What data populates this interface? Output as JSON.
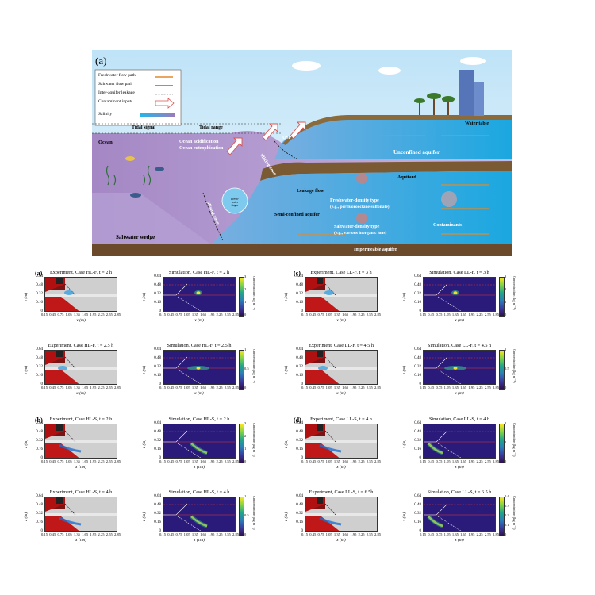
{
  "schematic": {
    "panel_label": "(a)",
    "legend": [
      {
        "label": "Freshwater flow path",
        "kind": "orange-arrow"
      },
      {
        "label": "Saltwater flow path",
        "kind": "purple-arrow"
      },
      {
        "label": "Inter-aquifer leakage",
        "kind": "dashed-arrow"
      },
      {
        "label": "Contaminant inputs",
        "kind": "hollow-arrow"
      },
      {
        "label": "Salinity",
        "kind": "gradient-bar"
      }
    ],
    "labels": {
      "water_table": "Water table",
      "tidal_signal": "Tidal signal",
      "tidal_range": "Tidal range",
      "usp": "USP",
      "ocean": "Ocean",
      "ocean_acidification": "Ocean acidification",
      "ocean_eutrophication": "Ocean eutrophication",
      "mixing_zone_upper": "Mixing zone",
      "unconfined_aquifer": "Unconfined aquifer",
      "aquitard": "Aquitard",
      "leakage_flow": "Leakage flow",
      "freshwater_finger": "Fresh-water finger",
      "freshwater_density_type": "Freshwater-density type",
      "freshwater_density_example": "(e.g., perfluorooctane sulfonate)",
      "semi_confined_aquifer": "Semi-confined aquifer",
      "mixing_zone_lower": "Mixing zone",
      "saltwater_density_type": "Saltwater-density type",
      "saltwater_density_example": "(e.g., various inorganic ions)",
      "contaminants": "Contaminants",
      "saltwater_wedge": "Saltwater wedge",
      "impermeable_aquifer": "Impermeable aquifer"
    }
  },
  "figure": {
    "group_labels": [
      "(a)",
      "(b)",
      "(c)",
      "(d)"
    ],
    "ytick_labels": [
      "0.64",
      "0.48",
      "0.32",
      "0.16",
      "0"
    ],
    "xtick_labels": [
      "0.15",
      "0.45",
      "0.75",
      "1.05",
      "1.35",
      "1.65",
      "1.95",
      "2.25",
      "2.55",
      "2.85"
    ],
    "ylabel": "z (m)",
    "cbar_label": "Concentration (kg m⁻³)",
    "rows": [
      {
        "titles": [
          "Experiment, Case HL-F, t = 2 h",
          "Simulation, Case HL-F, t = 2 h",
          "Experiment, Case LL-F, t = 3 h",
          "Simulation, Case LL-F, t = 3 h"
        ],
        "xlabel": [
          "x (m)",
          "x (m)",
          "x (m)",
          "x (m)"
        ],
        "cbar": [
          [
            "3",
            "2",
            "1",
            "0"
          ],
          [
            "3",
            "2",
            "1",
            "0"
          ]
        ]
      },
      {
        "titles": [
          "Experiment, Case HL-F, t = 2.5 h",
          "Simulation, Case HL-F, t = 2.5 h",
          "Experiment, Case LL-F, t = 4.5 h",
          "Simulation, Case LL-F, t = 4.5 h"
        ],
        "xlabel": [
          "x (m)",
          "x (m)",
          "x (m)",
          "x (m)"
        ],
        "cbar": [
          [
            "1",
            "0.5",
            "0"
          ],
          [
            "1",
            "0.5",
            "0"
          ]
        ]
      },
      {
        "titles": [
          "Experiment, Case HL-S, t = 2 h",
          "Simulation, Case HL-S, t = 2 h",
          "Experiment, Case LL-S, t = 4 h",
          "Simulation, Case LL-S, t = 4 h"
        ],
        "xlabel": [
          "x (cm)",
          "x (cm)",
          "x (m)",
          "x (m)"
        ],
        "cbar": [
          [
            "3",
            "2",
            "1",
            "0"
          ],
          [
            "2",
            "1",
            "0"
          ]
        ]
      },
      {
        "titles": [
          "Experiment, Case HL-S, t = 4 h",
          "Simulation, Case HL-S, t = 4 h",
          "Experiment, Case LL-S, t = 6.5h",
          "Simulation, Case LL-S, t = 6.5 h"
        ],
        "xlabel": [
          "x (cm)",
          "x (cm)",
          "x (m)",
          "x (m)"
        ],
        "cbar": [
          [
            "1",
            "0.5",
            "0"
          ],
          [
            "0.4",
            "0.3",
            "0.2",
            "0.1",
            "0"
          ]
        ]
      }
    ]
  }
}
